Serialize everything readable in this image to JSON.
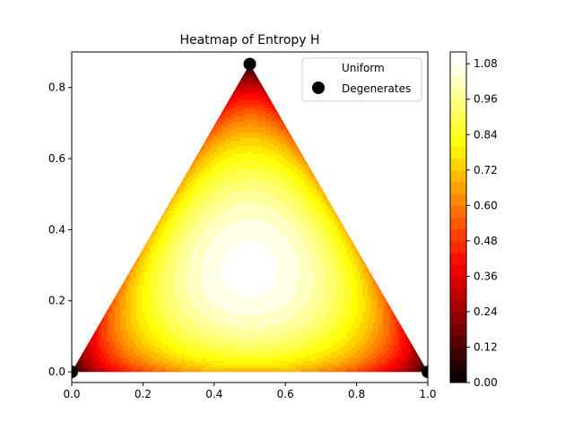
{
  "chart_data": {
    "type": "heatmap",
    "title": "Heatmap of Entropy H",
    "xlabel": "",
    "ylabel": "",
    "xlim": [
      0.0,
      1.0
    ],
    "ylim": [
      -0.03,
      0.9
    ],
    "x_ticks": [
      "0.0",
      "0.2",
      "0.4",
      "0.6",
      "0.8",
      "1.0"
    ],
    "x_tick_values": [
      0.0,
      0.2,
      0.4,
      0.6,
      0.8,
      1.0
    ],
    "y_ticks": [
      "0.0",
      "0.2",
      "0.4",
      "0.6",
      "0.8"
    ],
    "y_tick_values": [
      0.0,
      0.2,
      0.4,
      0.6,
      0.8
    ],
    "triangle_vertices": [
      [
        0.0,
        0.0
      ],
      [
        1.0,
        0.0
      ],
      [
        0.5,
        0.866
      ]
    ],
    "colormap": "hot",
    "colorbar": {
      "min": 0.0,
      "max": 1.12,
      "levels": 28,
      "ticks": [
        "0.00",
        "0.12",
        "0.24",
        "0.36",
        "0.48",
        "0.60",
        "0.72",
        "0.84",
        "0.96",
        "1.08"
      ],
      "tick_values": [
        0.0,
        0.12,
        0.24,
        0.36,
        0.48,
        0.6,
        0.72,
        0.84,
        0.96,
        1.08
      ]
    },
    "series": [
      {
        "name": "Uniform",
        "type": "scatter",
        "points": [
          [
            0.5,
            0.2887
          ]
        ],
        "color": "#ffffff"
      },
      {
        "name": "Degenerates",
        "type": "scatter",
        "points": [
          [
            0.0,
            0.0
          ],
          [
            1.0,
            0.0
          ],
          [
            0.5,
            0.866
          ]
        ],
        "color": "#000000"
      }
    ],
    "legend": {
      "position": "top-right",
      "entries": [
        "Uniform",
        "Degenerates"
      ]
    },
    "grid": false
  }
}
